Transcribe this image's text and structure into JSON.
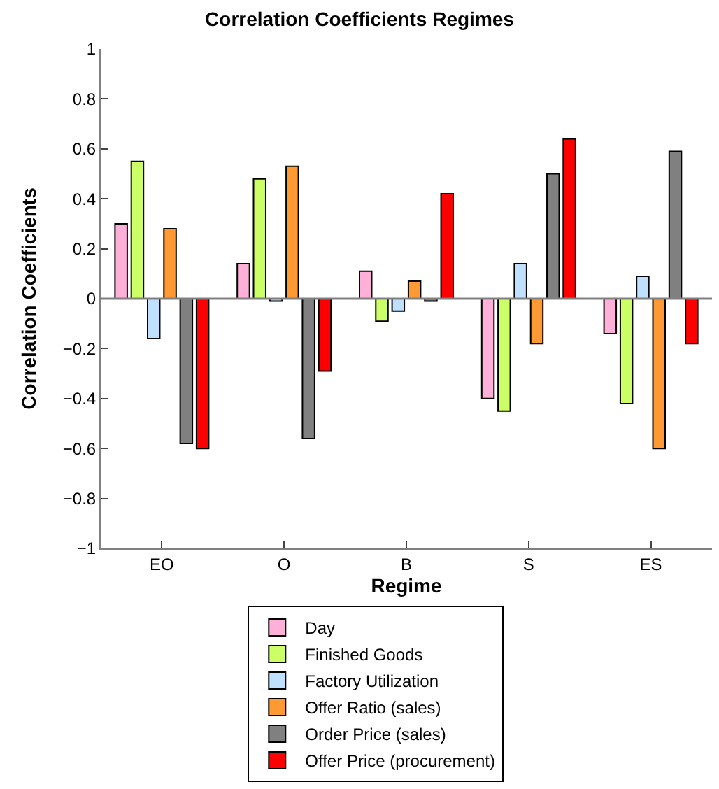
{
  "chart_data": {
    "type": "bar",
    "title": "Correlation Coefficients Regimes",
    "xlabel": "Regime",
    "ylabel": "Correlation Coefficients",
    "categories": [
      "EO",
      "O",
      "B",
      "S",
      "ES"
    ],
    "series": [
      {
        "name": "Day",
        "color": "#ffb0d8",
        "values": [
          0.3,
          0.14,
          0.11,
          -0.4,
          -0.14
        ]
      },
      {
        "name": "Finished Goods",
        "color": "#ccff66",
        "values": [
          0.55,
          0.48,
          -0.09,
          -0.45,
          -0.42
        ]
      },
      {
        "name": "Factory Utilization",
        "color": "#c0e0ff",
        "values": [
          -0.16,
          -0.01,
          -0.05,
          0.14,
          0.09
        ]
      },
      {
        "name": "Offer Ratio (sales)",
        "color": "#ff9933",
        "values": [
          0.28,
          0.53,
          0.07,
          -0.18,
          -0.6
        ]
      },
      {
        "name": "Order Price (sales)",
        "color": "#808080",
        "values": [
          -0.58,
          -0.56,
          -0.01,
          0.5,
          0.59
        ]
      },
      {
        "name": "Offer Price (procurement)",
        "color": "#ff0000",
        "values": [
          -0.6,
          -0.29,
          0.42,
          0.64,
          -0.18
        ]
      }
    ],
    "ylim": [
      -1,
      1
    ],
    "yticks": [
      -1,
      -0.8,
      -0.6,
      -0.4,
      -0.2,
      0,
      0.2,
      0.4,
      0.6,
      0.8,
      1
    ],
    "ref_lines": [
      {
        "axis": "y",
        "value": 0,
        "color": "#808080"
      }
    ],
    "legend": "bottom"
  }
}
